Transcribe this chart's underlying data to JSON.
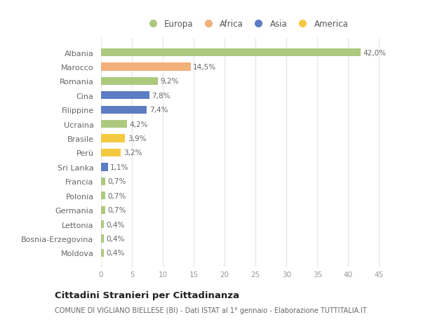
{
  "countries": [
    "Albania",
    "Marocco",
    "Romania",
    "Cina",
    "Filippine",
    "Ucraina",
    "Brasile",
    "Perù",
    "Sri Lanka",
    "Francia",
    "Polonia",
    "Germania",
    "Lettonia",
    "Bosnia-Erzegovina",
    "Moldova"
  ],
  "values": [
    42.0,
    14.5,
    9.2,
    7.8,
    7.4,
    4.2,
    3.9,
    3.2,
    1.1,
    0.7,
    0.7,
    0.7,
    0.4,
    0.4,
    0.4
  ],
  "labels": [
    "42,0%",
    "14,5%",
    "9,2%",
    "7,8%",
    "7,4%",
    "4,2%",
    "3,9%",
    "3,2%",
    "1,1%",
    "0,7%",
    "0,7%",
    "0,7%",
    "0,4%",
    "0,4%",
    "0,4%"
  ],
  "colors": [
    "#adc97e",
    "#f2b07a",
    "#adc97e",
    "#5c7dc4",
    "#5c7dc4",
    "#adc97e",
    "#f5c842",
    "#f5c842",
    "#5c7dc4",
    "#adc97e",
    "#adc97e",
    "#adc97e",
    "#adc97e",
    "#adc97e",
    "#adc97e"
  ],
  "legend_labels": [
    "Europa",
    "Africa",
    "Asia",
    "America"
  ],
  "legend_colors": [
    "#adc97e",
    "#f2b07a",
    "#5c7dc4",
    "#f5c842"
  ],
  "title": "Cittadini Stranieri per Cittadinanza",
  "subtitle": "COMUNE DI VIGLIANO BIELLESE (BI) - Dati ISTAT al 1° gennaio - Elaborazione TUTTITALIA.IT",
  "xlim": [
    0,
    47
  ],
  "xticks": [
    0,
    5,
    10,
    15,
    20,
    25,
    30,
    35,
    40,
    45
  ],
  "background_color": "#ffffff",
  "grid_color": "#e8e8e8",
  "bar_height": 0.55
}
